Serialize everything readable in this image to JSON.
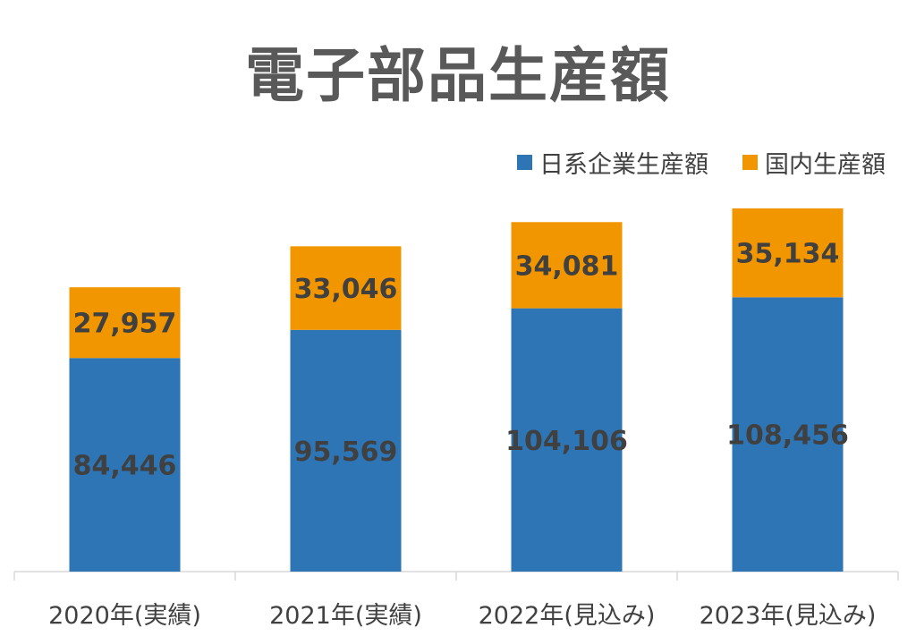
{
  "chart_data": {
    "type": "bar",
    "stacked": true,
    "title": "電子部品生産額",
    "categories": [
      "2020年(実績)",
      "2021年(実績)",
      "2022年(見込み)",
      "2023年(見込み)"
    ],
    "series": [
      {
        "name": "日系企業生産額",
        "color": "#2E75B6",
        "values": [
          84446,
          95569,
          104106,
          108456
        ]
      },
      {
        "name": "国内生産額",
        "color": "#F29600",
        "values": [
          27957,
          33046,
          34081,
          35134
        ]
      }
    ],
    "data_labels": [
      [
        "84,446",
        "95,569",
        "104,106",
        "108,456"
      ],
      [
        "27,957",
        "33,046",
        "34,081",
        "35,134"
      ]
    ],
    "ylim": [
      0,
      160000
    ],
    "legend_position": "top-right",
    "grid": false
  }
}
